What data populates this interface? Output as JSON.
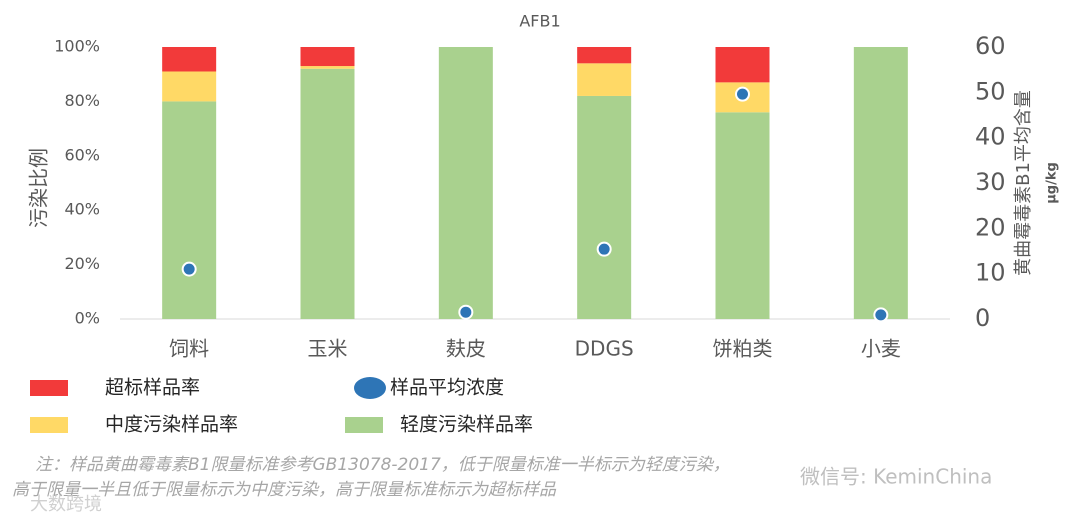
{
  "chart_data": {
    "type": "bar",
    "title": "AFB1",
    "y_label": "污染比例",
    "y2_label": "黄曲霉毒素B1平均含量",
    "y2_unit": "μg/kg",
    "categories": [
      "饲料",
      "玉米",
      "麸皮",
      "DDGS",
      "饼粕类",
      "小麦"
    ],
    "series": [
      {
        "name": "轻度污染样品率",
        "color": "#a9d18e",
        "values": [
          80,
          92,
          100,
          82,
          76,
          100
        ]
      },
      {
        "name": "中度污染样品率",
        "color": "#ffd966",
        "values": [
          11,
          1,
          0,
          12,
          11,
          0
        ]
      },
      {
        "name": "超标样品率",
        "color": "#f23a3a",
        "values": [
          9,
          7,
          0,
          6,
          13,
          0
        ]
      },
      {
        "name": "样品平均浓度",
        "color": "#2e75b6",
        "axis": "y2",
        "values": [
          11,
          null,
          1.5,
          15.4,
          49.6,
          0.9
        ]
      }
    ],
    "ylim": [
      0,
      100
    ],
    "yticks": [
      {
        "value": 0,
        "label": "0%"
      },
      {
        "value": 20,
        "label": "20%"
      },
      {
        "value": 40,
        "label": "40%"
      },
      {
        "value": 60,
        "label": "60%"
      },
      {
        "value": 80,
        "label": "80%"
      },
      {
        "value": 100,
        "label": "100%"
      }
    ],
    "y2lim": [
      0,
      60
    ],
    "y2ticks": [
      0,
      10,
      20,
      30,
      40,
      50,
      60
    ],
    "grid": false,
    "notes": [
      "注：样品黄曲霉毒素B1限量标准参考GB13078-2017，低于限量标准一半标示为轻度污染，",
      "高于限量一半且低于限量标示为中度污染，高于限量标准标示为超标样品"
    ],
    "watermarks": [
      "微信号: KeminChina",
      "大数跨境"
    ]
  }
}
